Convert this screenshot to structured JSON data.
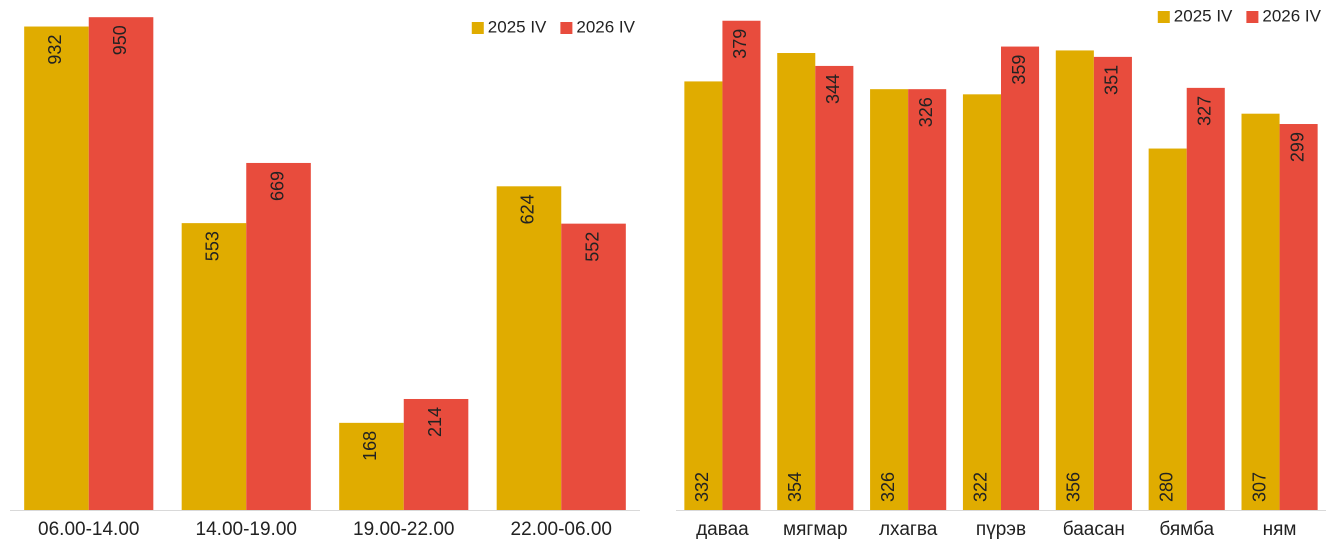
{
  "chart_data": [
    {
      "type": "bar",
      "categories": [
        "06.00-14.00",
        "14.00-19.00",
        "19.00-22.00",
        "22.00-06.00"
      ],
      "series": [
        {
          "name": "2025 IV",
          "color": "#e0ac00",
          "values": [
            932,
            553,
            168,
            624
          ]
        },
        {
          "name": "2026 IV",
          "color": "#e84c3d",
          "values": [
            950,
            669,
            214,
            552
          ]
        }
      ],
      "ylim": [
        0,
        960
      ],
      "legend": "upper right"
    },
    {
      "type": "bar",
      "categories": [
        "даваа",
        "мягмар",
        "лхагва",
        "пүрэв",
        "баасан",
        "бямба",
        "ням"
      ],
      "series": [
        {
          "name": "2025 IV",
          "color": "#e0ac00",
          "values": [
            332,
            354,
            326,
            322,
            356,
            280,
            307
          ]
        },
        {
          "name": "2026 IV",
          "color": "#e84c3d",
          "values": [
            379,
            344,
            326,
            359,
            351,
            327,
            299
          ]
        }
      ],
      "ylim": [
        0,
        385
      ],
      "legend": "upper right"
    }
  ]
}
